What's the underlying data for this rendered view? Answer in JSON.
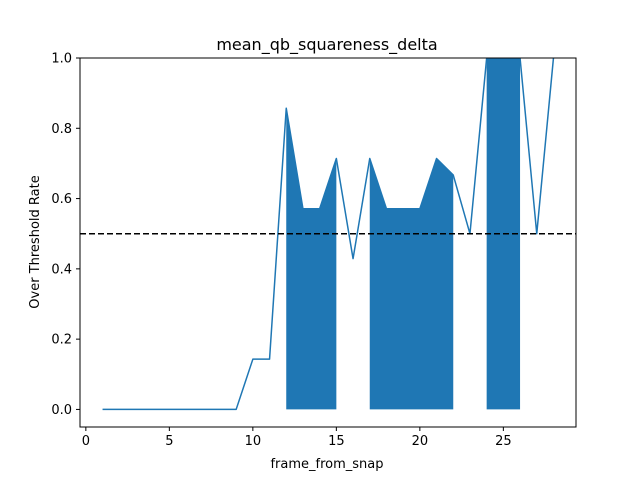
{
  "chart_data": {
    "type": "line",
    "title": "mean_qb_squareness_delta",
    "xlabel": "frame_from_snap",
    "ylabel": "Over Threshold Rate",
    "xlim": [
      -0.35,
      29.35
    ],
    "ylim": [
      -0.05,
      1.0
    ],
    "xticks": [
      0,
      5,
      10,
      15,
      20,
      25
    ],
    "yticks": [
      0.0,
      0.2,
      0.4,
      0.6,
      0.8,
      1.0
    ],
    "xtick_labels": [
      "0",
      "5",
      "10",
      "15",
      "20",
      "25"
    ],
    "ytick_labels": [
      "0.0",
      "0.2",
      "0.4",
      "0.6",
      "0.8",
      "1.0"
    ],
    "threshold": 0.5,
    "threshold_style": "dashed",
    "fill_where_above_threshold": true,
    "color": "#1f77b4",
    "grid": false,
    "series": [
      {
        "x": [
          1,
          2,
          3,
          4,
          5,
          6,
          7,
          8,
          9,
          10,
          11,
          12,
          13,
          14,
          15,
          16,
          17,
          18,
          19,
          20,
          21,
          22,
          23,
          24,
          25,
          26,
          27,
          28
        ],
        "values": [
          0.0,
          0.0,
          0.0,
          0.0,
          0.0,
          0.0,
          0.0,
          0.0,
          0.0,
          0.143,
          0.143,
          0.857,
          0.571,
          0.571,
          0.714,
          0.429,
          0.714,
          0.571,
          0.571,
          0.571,
          0.714,
          0.667,
          0.5,
          1.0,
          1.0,
          1.0,
          0.5,
          1.0
        ]
      }
    ]
  }
}
